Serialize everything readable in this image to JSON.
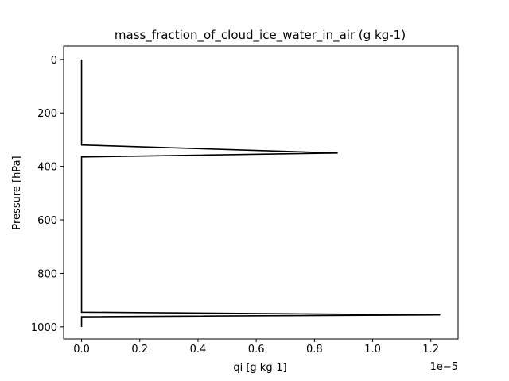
{
  "chart_data": {
    "type": "line",
    "title": "mass_fraction_of_cloud_ice_water_in_air (g kg-1)",
    "xlabel": "qi [g kg-1]",
    "ylabel": "Pressure [hPa]",
    "x_offset_text": "1e−5",
    "x_scale": 1e-05,
    "xlim": [
      -0.0616,
      1.2936
    ],
    "ylim": [
      1045,
      -50
    ],
    "y_inverted": true,
    "grid": false,
    "x_ticks": [
      0.0,
      0.2,
      0.4,
      0.6,
      0.8,
      1.0,
      1.2
    ],
    "x_tick_labels": [
      "0.0",
      "0.2",
      "0.4",
      "0.6",
      "0.8",
      "1.0",
      "1.2"
    ],
    "y_ticks": [
      0,
      200,
      400,
      600,
      800,
      1000
    ],
    "y_tick_labels": [
      "0",
      "200",
      "400",
      "600",
      "800",
      "1000"
    ],
    "series": [
      {
        "color": "#000000",
        "x": [
          0,
          0,
          0.88,
          0,
          0,
          1.232,
          0,
          0
        ],
        "y": [
          0,
          320,
          350,
          365,
          945,
          955,
          962,
          1000
        ]
      }
    ]
  }
}
